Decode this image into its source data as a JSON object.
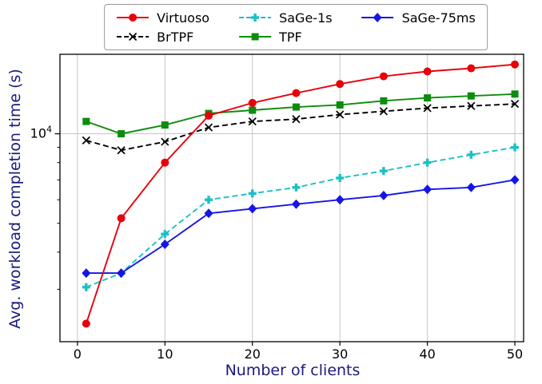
{
  "colors": {
    "axis_label": "#1a1a7e",
    "grid": "#c6c6c6",
    "spine": "#000000",
    "tick_label": "#000000",
    "legend_border": "#999999",
    "background": "#ffffff"
  },
  "chart_data": {
    "type": "line",
    "title": "",
    "xlabel": "Number of clients",
    "ylabel": "Avg. workload completion time (s)",
    "x": [
      1,
      5,
      10,
      15,
      20,
      25,
      30,
      35,
      40,
      45,
      50
    ],
    "xticks": [
      0,
      10,
      20,
      30,
      40,
      50
    ],
    "xlim": [
      -2,
      51
    ],
    "yscale": "log",
    "ylim": [
      2000,
      18500
    ],
    "ytick_labels": [
      {
        "value": 10000,
        "base": "10",
        "exponent": "4"
      }
    ],
    "y_minor_ticks": [
      3000,
      4000,
      5000,
      6000,
      7000,
      8000,
      9000
    ],
    "grid": true,
    "legend_position": "top",
    "series": [
      {
        "name": "Virtuoso",
        "color": "#e8000b",
        "linestyle": "solid",
        "marker": "circle",
        "zorder": 5,
        "values": [
          2300,
          5200,
          8000,
          11500,
          12700,
          13700,
          14700,
          15600,
          16200,
          16600,
          17100
        ]
      },
      {
        "name": "BrTPF",
        "color": "#000000",
        "linestyle": "dashed",
        "marker": "x",
        "zorder": 1,
        "values": [
          9500,
          8800,
          9400,
          10500,
          11000,
          11200,
          11600,
          11900,
          12200,
          12400,
          12600
        ]
      },
      {
        "name": "SaGe-1s",
        "color": "#1ac0c6",
        "linestyle": "dashed",
        "marker": "plus",
        "zorder": 3,
        "values": [
          3050,
          3400,
          4600,
          6000,
          6300,
          6600,
          7100,
          7500,
          8000,
          8500,
          9000
        ]
      },
      {
        "name": "TPF",
        "color": "#0d8c0d",
        "linestyle": "solid",
        "marker": "square",
        "zorder": 2,
        "values": [
          11000,
          10000,
          10700,
          11700,
          12000,
          12300,
          12500,
          12900,
          13200,
          13400,
          13600
        ]
      },
      {
        "name": "SaGe-75ms",
        "color": "#1515e6",
        "linestyle": "solid",
        "marker": "diamond",
        "zorder": 4,
        "values": [
          3400,
          3400,
          4250,
          5400,
          5600,
          5800,
          6000,
          6200,
          6500,
          6600,
          7000
        ]
      }
    ]
  }
}
